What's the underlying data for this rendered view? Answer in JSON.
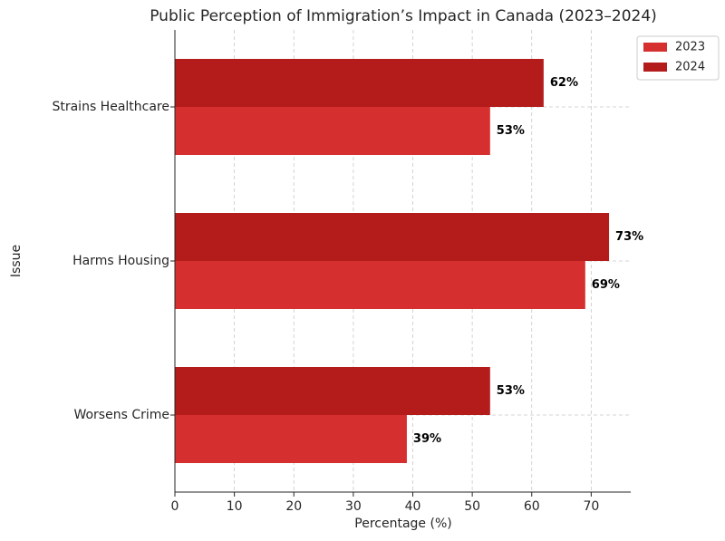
{
  "chart_data": {
    "type": "barh",
    "title": "Public Perception of Immigration’s Impact in Canada (2023–2024)",
    "xlabel": "Percentage (%)",
    "ylabel": "Issue",
    "categories": [
      "Strains Healthcare",
      "Harms Housing",
      "Worsens Crime"
    ],
    "series": [
      {
        "name": "2023",
        "color": "#d62f2f",
        "values": [
          53,
          69,
          39
        ],
        "value_labels": [
          "53%",
          "69%",
          "39%"
        ]
      },
      {
        "name": "2024",
        "color": "#b41c1c",
        "values": [
          62,
          73,
          53
        ],
        "value_labels": [
          "62%",
          "73%",
          "53%"
        ]
      }
    ],
    "xlim": [
      0,
      76.65
    ],
    "xticks": [
      0,
      10,
      20,
      30,
      40,
      50,
      60,
      70
    ],
    "grid": true,
    "legend": "upper right"
  }
}
